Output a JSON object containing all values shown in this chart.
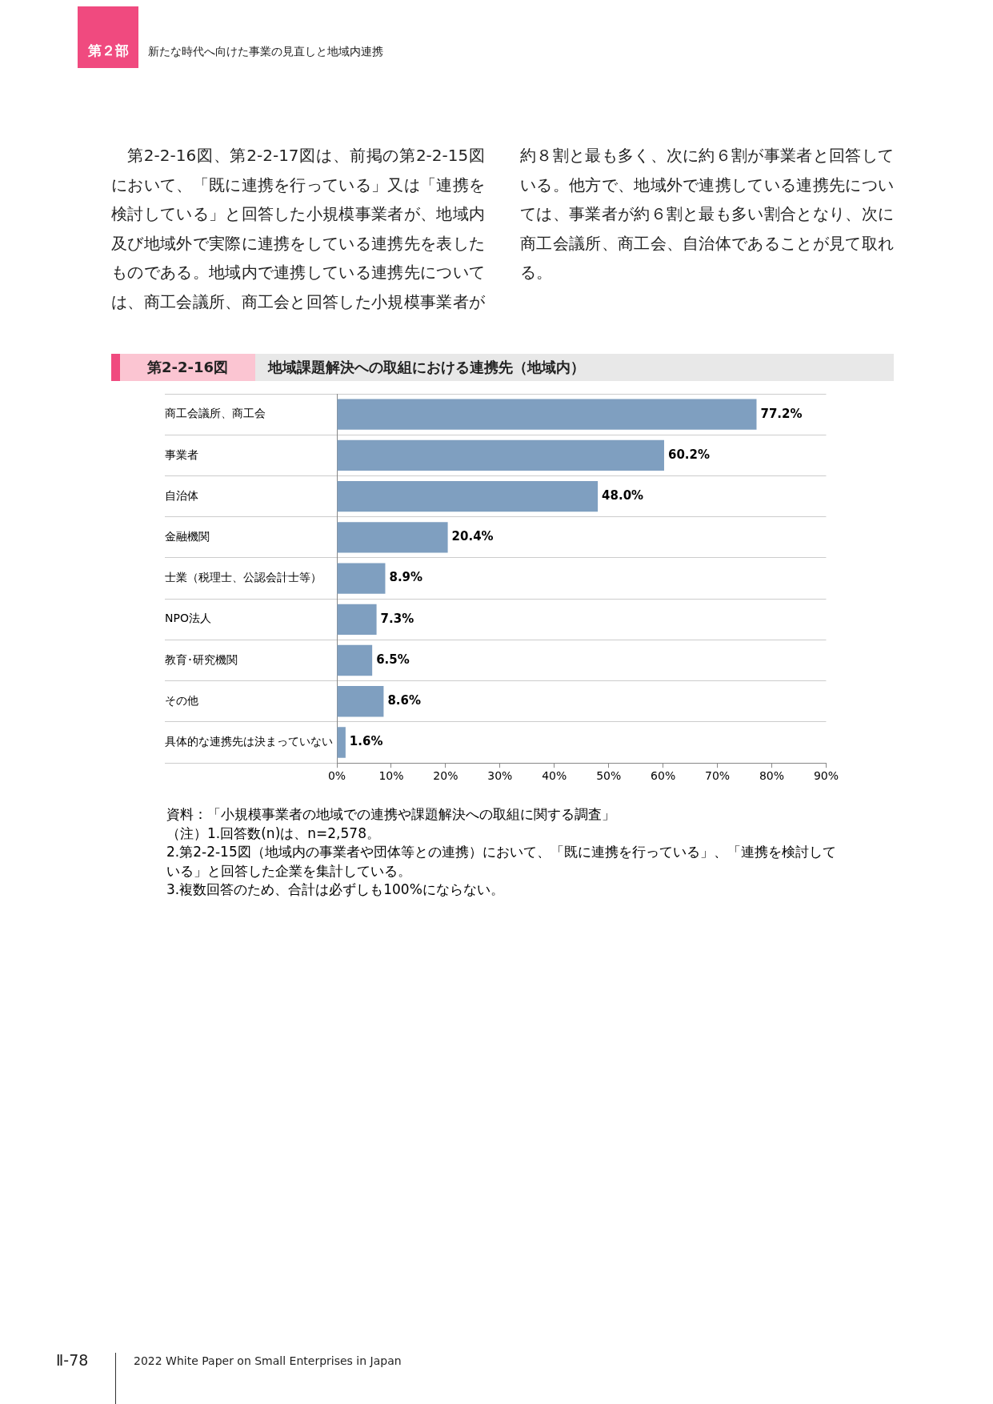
{
  "chart_data": {
    "type": "bar",
    "orientation": "horizontal",
    "title": "地域課題解決への取組における連携先（地域内）",
    "subtitle": "第2-2-16図",
    "categories": [
      "商工会議所、商工会",
      "事業者",
      "自治体",
      "金融機関",
      "士業（税理士、公認会計士等）",
      "NPO法人",
      "教育･研究機関",
      "その他",
      "具体的な連携先は決まっていない"
    ],
    "values": [
      77.2,
      60.2,
      48.0,
      20.4,
      8.9,
      7.3,
      6.5,
      8.6,
      1.6
    ],
    "value_labels": [
      "77.2%",
      "60.2%",
      "48.0%",
      "20.4%",
      "8.9%",
      "7.3%",
      "6.5%",
      "8.6%",
      "1.6%"
    ],
    "color": "#7f9fc0",
    "xlim": [
      0,
      90
    ],
    "xticks": [
      {
        "value": 0,
        "label": "0%"
      },
      {
        "value": 10,
        "label": "10%"
      },
      {
        "value": 20,
        "label": "20%"
      },
      {
        "value": 30,
        "label": "30%"
      },
      {
        "value": 40,
        "label": "40%"
      },
      {
        "value": 50,
        "label": "50%"
      },
      {
        "value": 60,
        "label": "60%"
      },
      {
        "value": 70,
        "label": "70%"
      },
      {
        "value": 80,
        "label": "80%"
      },
      {
        "value": 90,
        "label": "90%"
      }
    ],
    "grid": "y",
    "legend": false,
    "annotations": [
      "第２部",
      "新たな時代へ向けた事業の見直しと地域内連携",
      "第2-2-16図、第2-2-17図は、前掲の第2-2-15図において、「既に連携を行っている」又は「連携を検討している」と回答した小規模事業者が、地域内及び地域外で実際に連携をしている連携先を表したものである。地域内で連携している連携先については、商工会議所、商工会と回答した小規模事業者が約８割と最も多く、次に約６割が事業者と回答している。他方で、地域外で連携している連携先については、事業者が約６割と最も多い割合となり、次に商工会議所、商工会、自治体であることが見て取れる。",
      "資料：「小規模事業者の地域での連携や課題解決への取組に関する調査」",
      "（注）1.回答数(n)は、n=2,578。",
      "2.第2-2-15図（地域内の事業者や団体等との連携）において、「既に連携を行っている」、「連携を検討している」と回答した企業を集計している。",
      "3.複数回答のため、合計は必ずしも100%にならない。",
      "Ⅱ-78",
      "2022 White Paper on Small Enterprises in Japan"
    ]
  }
}
